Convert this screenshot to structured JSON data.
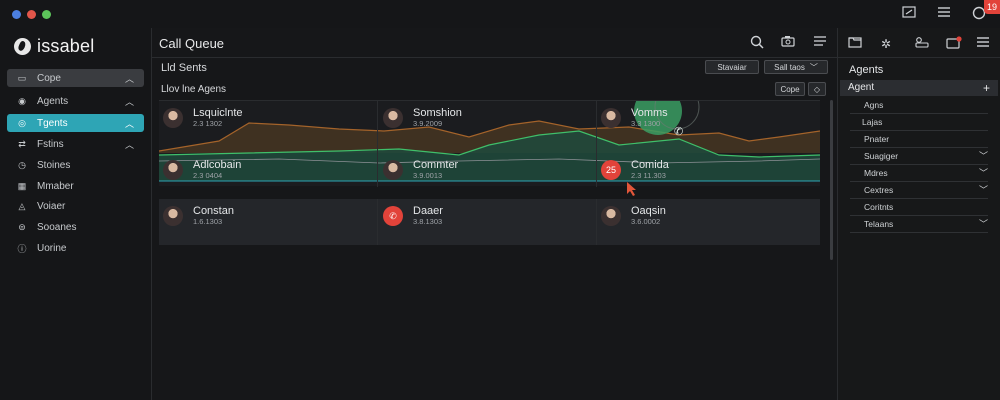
{
  "titlebar": {
    "notification_count": "19",
    "icons": [
      "window-icon",
      "menu-icon",
      "user-icon"
    ]
  },
  "sidebar": {
    "logo_text": "issabel",
    "items": [
      {
        "label": "Cope",
        "icon": "monitor-icon",
        "chevron": "up",
        "state": "selected-grey"
      },
      {
        "label": "Agents",
        "icon": "agent-icon",
        "chevron": "up",
        "state": "normal"
      },
      {
        "label": "Tgents",
        "icon": "target-icon",
        "chevron": "up",
        "state": "selected-teal"
      },
      {
        "label": "Fstins",
        "icon": "transfer-icon",
        "chevron": "up",
        "state": "normal"
      },
      {
        "label": "Stoines",
        "icon": "clock-icon",
        "chevron": "",
        "state": "normal"
      },
      {
        "label": "Mmaber",
        "icon": "grid-icon",
        "chevron": "",
        "state": "normal"
      },
      {
        "label": "Voiaer",
        "icon": "bell-icon",
        "chevron": "",
        "state": "normal"
      },
      {
        "label": "Sooanes",
        "icon": "db-icon",
        "chevron": "",
        "state": "normal"
      },
      {
        "label": "Uorine",
        "icon": "info-icon",
        "chevron": "",
        "state": "normal"
      }
    ]
  },
  "main": {
    "title": "Call Queue",
    "section_label": "Lld Sents",
    "buttons": {
      "filter": "Stavaiar",
      "sort": "Sall taos"
    },
    "sub_label": "Llov lne Agens",
    "cope_button": "Cope",
    "agents": [
      {
        "name": "Lsquiclnte",
        "number": "2.3 1302",
        "avatar": "photo"
      },
      {
        "name": "Somshion",
        "number": "3.9.2009",
        "avatar": "photo"
      },
      {
        "name": "Vomms",
        "number": "3.3 1300",
        "avatar": "photo"
      },
      {
        "name": "Adlcobain",
        "number": "2.3 0404",
        "avatar": "photo"
      },
      {
        "name": "Commter",
        "number": "3.9.0013",
        "avatar": "photo"
      },
      {
        "name": "Comida",
        "number": "2.3 11.303",
        "avatar": "red",
        "avatar_text": "25"
      },
      {
        "name": "Constan",
        "number": "1.6.1303",
        "avatar": "photo"
      },
      {
        "name": "Daaer",
        "number": "3.8.1303",
        "avatar": "phone-red"
      },
      {
        "name": "Oaqsin",
        "number": "3.6.0002",
        "avatar": "photo"
      }
    ]
  },
  "right_panel": {
    "title": "Agents",
    "agent_header": "Agent",
    "items": [
      {
        "label": "Agns",
        "chevron": false
      },
      {
        "label": "Lajas",
        "chevron": false
      },
      {
        "label": "Pnater",
        "chevron": false
      },
      {
        "label": "Suagiger",
        "chevron": true
      },
      {
        "label": "Mdres",
        "chevron": true
      },
      {
        "label": "Cextres",
        "chevron": true
      },
      {
        "label": "Coritnts",
        "chevron": false
      },
      {
        "label": "Telaans",
        "chevron": true
      }
    ]
  },
  "colors": {
    "accent_teal": "#2ea5b5",
    "alert_red": "#e2433a",
    "graph_green": "#3fbf6a",
    "graph_orange": "#a4632a"
  }
}
